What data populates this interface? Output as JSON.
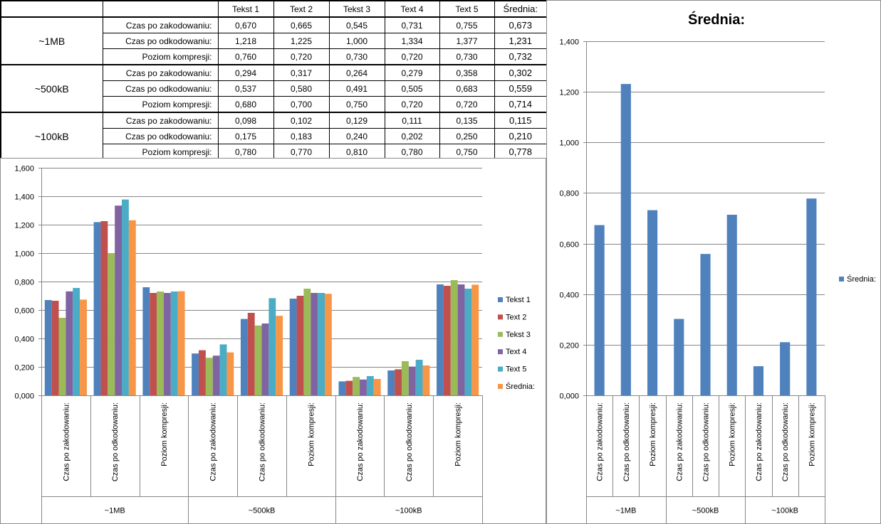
{
  "table": {
    "headers": [
      "",
      "",
      "Tekst 1",
      "Text 2",
      "Tekst 3",
      "Text 4",
      "Text 5",
      "Średnia:"
    ],
    "groups": [
      {
        "name": "~1MB",
        "rows": [
          {
            "label": "Czas po zakodowaniu:",
            "values": [
              "0,670",
              "0,665",
              "0,545",
              "0,731",
              "0,755"
            ],
            "avg": "0,673"
          },
          {
            "label": "Czas po odkodowaniu:",
            "values": [
              "1,218",
              "1,225",
              "1,000",
              "1,334",
              "1,377"
            ],
            "avg": "1,231"
          },
          {
            "label": "Poziom kompresji:",
            "values": [
              "0,760",
              "0,720",
              "0,730",
              "0,720",
              "0,730"
            ],
            "avg": "0,732"
          }
        ]
      },
      {
        "name": "~500kB",
        "rows": [
          {
            "label": "Czas po zakodowaniu:",
            "values": [
              "0,294",
              "0,317",
              "0,264",
              "0,279",
              "0,358"
            ],
            "avg": "0,302"
          },
          {
            "label": "Czas po odkodowaniu:",
            "values": [
              "0,537",
              "0,580",
              "0,491",
              "0,505",
              "0,683"
            ],
            "avg": "0,559"
          },
          {
            "label": "Poziom kompresji:",
            "values": [
              "0,680",
              "0,700",
              "0,750",
              "0,720",
              "0,720"
            ],
            "avg": "0,714"
          }
        ]
      },
      {
        "name": "~100kB",
        "rows": [
          {
            "label": "Czas po zakodowaniu:",
            "values": [
              "0,098",
              "0,102",
              "0,129",
              "0,111",
              "0,135"
            ],
            "avg": "0,115"
          },
          {
            "label": "Czas po odkodowaniu:",
            "values": [
              "0,175",
              "0,183",
              "0,240",
              "0,202",
              "0,250"
            ],
            "avg": "0,210"
          },
          {
            "label": "Poziom kompresji:",
            "values": [
              "0,780",
              "0,770",
              "0,810",
              "0,780",
              "0,750"
            ],
            "avg": "0,778"
          }
        ]
      }
    ]
  },
  "chart_data": [
    {
      "type": "bar",
      "title": "",
      "categories": [
        "Czas po zakodowaniu:",
        "Czas po odkodowaniu:",
        "Poziom kompresji:",
        "Czas po zakodowaniu:",
        "Czas po odkodowaniu:",
        "Poziom kompresji:",
        "Czas po zakodowaniu:",
        "Czas po odkodowaniu:",
        "Poziom kompresji:"
      ],
      "groups": [
        "~1MB",
        "~500kB",
        "~100kB"
      ],
      "series": [
        {
          "name": "Tekst 1",
          "color": "#4F81BD",
          "values": [
            0.67,
            1.218,
            0.76,
            0.294,
            0.537,
            0.68,
            0.098,
            0.175,
            0.78
          ]
        },
        {
          "name": "Text 2",
          "color": "#C0504D",
          "values": [
            0.665,
            1.225,
            0.72,
            0.317,
            0.58,
            0.7,
            0.102,
            0.183,
            0.77
          ]
        },
        {
          "name": "Tekst 3",
          "color": "#9BBB59",
          "values": [
            0.545,
            1.0,
            0.73,
            0.264,
            0.491,
            0.75,
            0.129,
            0.24,
            0.81
          ]
        },
        {
          "name": "Text 4",
          "color": "#8064A2",
          "values": [
            0.731,
            1.334,
            0.72,
            0.279,
            0.505,
            0.72,
            0.111,
            0.202,
            0.78
          ]
        },
        {
          "name": "Text 5",
          "color": "#4BACC6",
          "values": [
            0.755,
            1.377,
            0.73,
            0.358,
            0.683,
            0.72,
            0.135,
            0.25,
            0.75
          ]
        },
        {
          "name": "Średnia:",
          "color": "#F79646",
          "values": [
            0.673,
            1.231,
            0.732,
            0.302,
            0.559,
            0.714,
            0.115,
            0.21,
            0.778
          ]
        }
      ],
      "ylim": [
        0,
        1.6
      ],
      "yticks": [
        "0,000",
        "0,200",
        "0,400",
        "0,600",
        "0,800",
        "1,000",
        "1,200",
        "1,400",
        "1,600"
      ],
      "grid": true,
      "legend": "right"
    },
    {
      "type": "bar",
      "title": "Średnia:",
      "categories": [
        "Czas po zakodowaniu:",
        "Czas po odkodowaniu:",
        "Poziom kompresji:",
        "Czas po zakodowaniu:",
        "Czas po odkodowaniu:",
        "Poziom kompresji:",
        "Czas po zakodowaniu:",
        "Czas po odkodowaniu:",
        "Poziom kompresji:"
      ],
      "groups": [
        "~1MB",
        "~500kB",
        "~100kB"
      ],
      "series": [
        {
          "name": "Średnia:",
          "color": "#4F81BD",
          "values": [
            0.673,
            1.231,
            0.732,
            0.302,
            0.559,
            0.714,
            0.115,
            0.21,
            0.778
          ]
        }
      ],
      "ylim": [
        0,
        1.4
      ],
      "yticks": [
        "0,000",
        "0,200",
        "0,400",
        "0,600",
        "0,800",
        "1,000",
        "1,200",
        "1,400"
      ],
      "grid": true,
      "legend": "right"
    }
  ]
}
